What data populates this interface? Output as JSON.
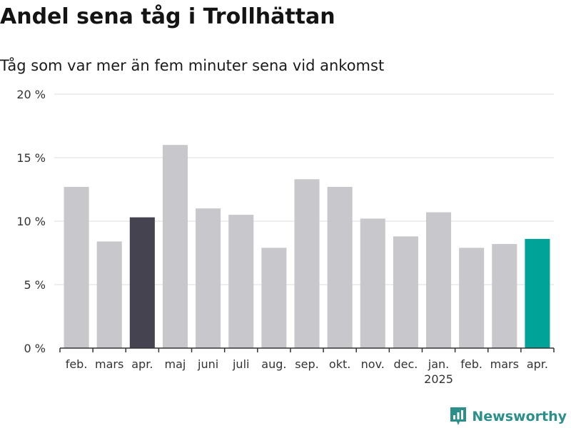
{
  "header": {
    "title": "Andel sena tåg i Trollhättan",
    "subtitle": "Tåg som var mer än fem minuter sena vid ankomst"
  },
  "brand": {
    "name": "Newsworthy",
    "icon": "newsworthy-logo-icon"
  },
  "colors": {
    "bar_default": "#c8c7cc",
    "bar_dark": "#44434f",
    "bar_highlight": "#00a398",
    "grid": "#dcdcdc",
    "axis": "#333333",
    "brand": "#2b8f8a"
  },
  "chart_data": {
    "type": "bar",
    "title": "Andel sena tåg i Trollhättan",
    "subtitle": "Tåg som var mer än fem minuter sena vid ankomst",
    "xlabel": "",
    "ylabel": "",
    "categories": [
      "feb.",
      "mars",
      "apr.",
      "maj",
      "juni",
      "juli",
      "aug.",
      "sep.",
      "okt.",
      "nov.",
      "dec.",
      "jan.",
      "feb.",
      "mars",
      "apr."
    ],
    "year_labels": [
      {
        "index": 11,
        "text": "2025"
      }
    ],
    "values": [
      12.7,
      8.4,
      10.3,
      16.0,
      11.0,
      10.5,
      7.9,
      13.3,
      12.7,
      10.2,
      8.8,
      10.7,
      7.9,
      8.2,
      8.6
    ],
    "bar_colors": [
      "default",
      "default",
      "dark",
      "default",
      "default",
      "default",
      "default",
      "default",
      "default",
      "default",
      "default",
      "default",
      "default",
      "default",
      "highlight"
    ],
    "ylim": [
      0,
      20
    ],
    "yticks": [
      0,
      5,
      10,
      15,
      20
    ],
    "ytick_labels": [
      "0 %",
      "5 %",
      "10 %",
      "15 %",
      "20 %"
    ],
    "grid": true,
    "legend": "none"
  }
}
